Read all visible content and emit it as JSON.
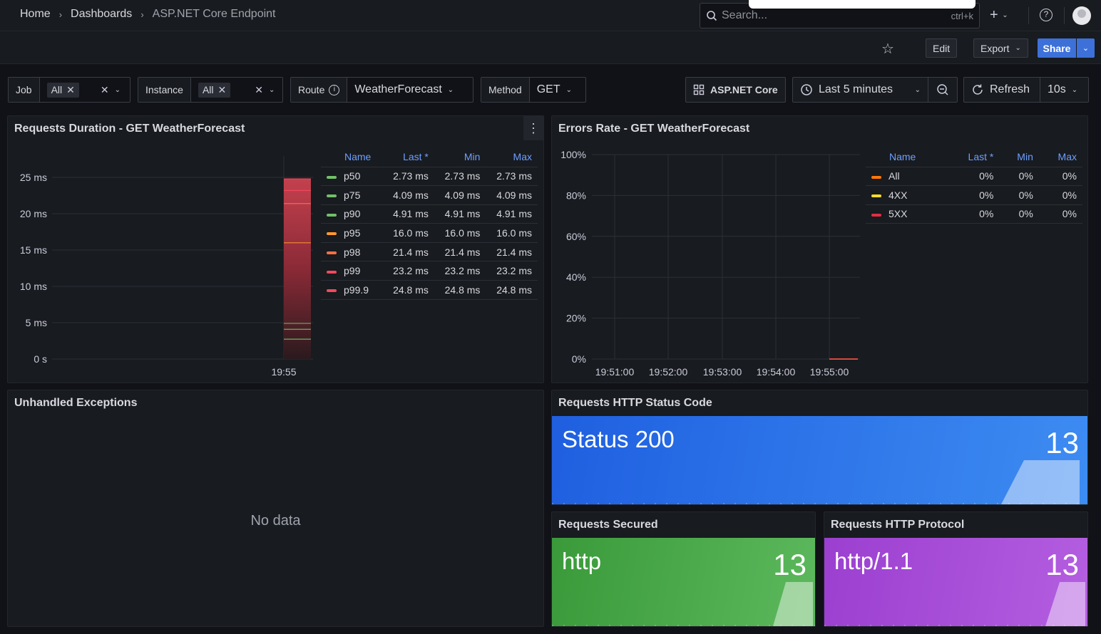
{
  "breadcrumb": {
    "home": "Home",
    "dashboards": "Dashboards",
    "current": "ASP.NET Core Endpoint"
  },
  "search": {
    "placeholder": "Search...",
    "shortcut": "ctrl+k"
  },
  "toolbar": {
    "edit": "Edit",
    "export": "Export",
    "share": "Share"
  },
  "variables": {
    "job": {
      "label": "Job",
      "value": "All"
    },
    "instance": {
      "label": "Instance",
      "value": "All"
    },
    "route": {
      "label": "Route",
      "value": "WeatherForecast"
    },
    "method": {
      "label": "Method",
      "value": "GET"
    }
  },
  "controls": {
    "link": "ASP.NET Core",
    "time_range": "Last 5 minutes",
    "refresh": "Refresh",
    "refresh_interval": "10s"
  },
  "panels": {
    "duration": {
      "title": "Requests Duration - GET WeatherForecast",
      "legend_headers": [
        "Name",
        "Last *",
        "Min",
        "Max"
      ],
      "rows": [
        {
          "name": "p50",
          "color": "#73bf69",
          "last": "2.73 ms",
          "min": "2.73 ms",
          "max": "2.73 ms"
        },
        {
          "name": "p75",
          "color": "#73bf69",
          "last": "4.09 ms",
          "min": "4.09 ms",
          "max": "4.09 ms"
        },
        {
          "name": "p90",
          "color": "#73bf69",
          "last": "4.91 ms",
          "min": "4.91 ms",
          "max": "4.91 ms"
        },
        {
          "name": "p95",
          "color": "#ff9830",
          "last": "16.0 ms",
          "min": "16.0 ms",
          "max": "16.0 ms"
        },
        {
          "name": "p98",
          "color": "#ff7043",
          "last": "21.4 ms",
          "min": "21.4 ms",
          "max": "21.4 ms"
        },
        {
          "name": "p99",
          "color": "#f2495c",
          "last": "23.2 ms",
          "min": "23.2 ms",
          "max": "23.2 ms"
        },
        {
          "name": "p99.9",
          "color": "#f2495c",
          "last": "24.8 ms",
          "min": "24.8 ms",
          "max": "24.8 ms"
        }
      ]
    },
    "errors": {
      "title": "Errors Rate - GET WeatherForecast",
      "legend_headers": [
        "Name",
        "Last *",
        "Min",
        "Max"
      ],
      "rows": [
        {
          "name": "All",
          "color": "#ff780a",
          "last": "0%",
          "min": "0%",
          "max": "0%"
        },
        {
          "name": "4XX",
          "color": "#fade2a",
          "last": "0%",
          "min": "0%",
          "max": "0%"
        },
        {
          "name": "5XX",
          "color": "#e02f44",
          "last": "0%",
          "min": "0%",
          "max": "0%"
        }
      ]
    },
    "exceptions": {
      "title": "Unhandled Exceptions",
      "empty": "No data"
    },
    "status_code": {
      "title": "Requests HTTP Status Code",
      "label": "Status 200",
      "value": "13",
      "color": "#1f60c4"
    },
    "secured": {
      "title": "Requests Secured",
      "label": "http",
      "value": "13",
      "color": "#37872d"
    },
    "protocol": {
      "title": "Requests HTTP Protocol",
      "label": "http/1.1",
      "value": "13",
      "color": "#8f3bb8"
    }
  },
  "chart_data": [
    {
      "type": "line",
      "title": "Requests Duration - GET WeatherForecast",
      "x": [
        "19:55"
      ],
      "ylim": [
        0,
        25
      ],
      "y_ticks": [
        "0 s",
        "5 ms",
        "10 ms",
        "15 ms",
        "20 ms",
        "25 ms"
      ],
      "x_ticks": [
        "19:55"
      ],
      "unit": "ms",
      "series": [
        {
          "name": "p50",
          "values": [
            2.73
          ]
        },
        {
          "name": "p75",
          "values": [
            4.09
          ]
        },
        {
          "name": "p90",
          "values": [
            4.91
          ]
        },
        {
          "name": "p95",
          "values": [
            16.0
          ]
        },
        {
          "name": "p98",
          "values": [
            21.4
          ]
        },
        {
          "name": "p99",
          "values": [
            23.2
          ]
        },
        {
          "name": "p99.9",
          "values": [
            24.8
          ]
        }
      ],
      "legend": "right"
    },
    {
      "type": "line",
      "title": "Errors Rate - GET WeatherForecast",
      "x_ticks": [
        "19:51:00",
        "19:52:00",
        "19:53:00",
        "19:54:00",
        "19:55:00"
      ],
      "y_ticks": [
        "0%",
        "20%",
        "40%",
        "60%",
        "80%",
        "100%"
      ],
      "ylim": [
        0,
        100
      ],
      "series": [
        {
          "name": "All",
          "values": [
            0
          ]
        },
        {
          "name": "4XX",
          "values": [
            0
          ]
        },
        {
          "name": "5XX",
          "values": [
            0
          ]
        }
      ],
      "legend": "right"
    }
  ]
}
